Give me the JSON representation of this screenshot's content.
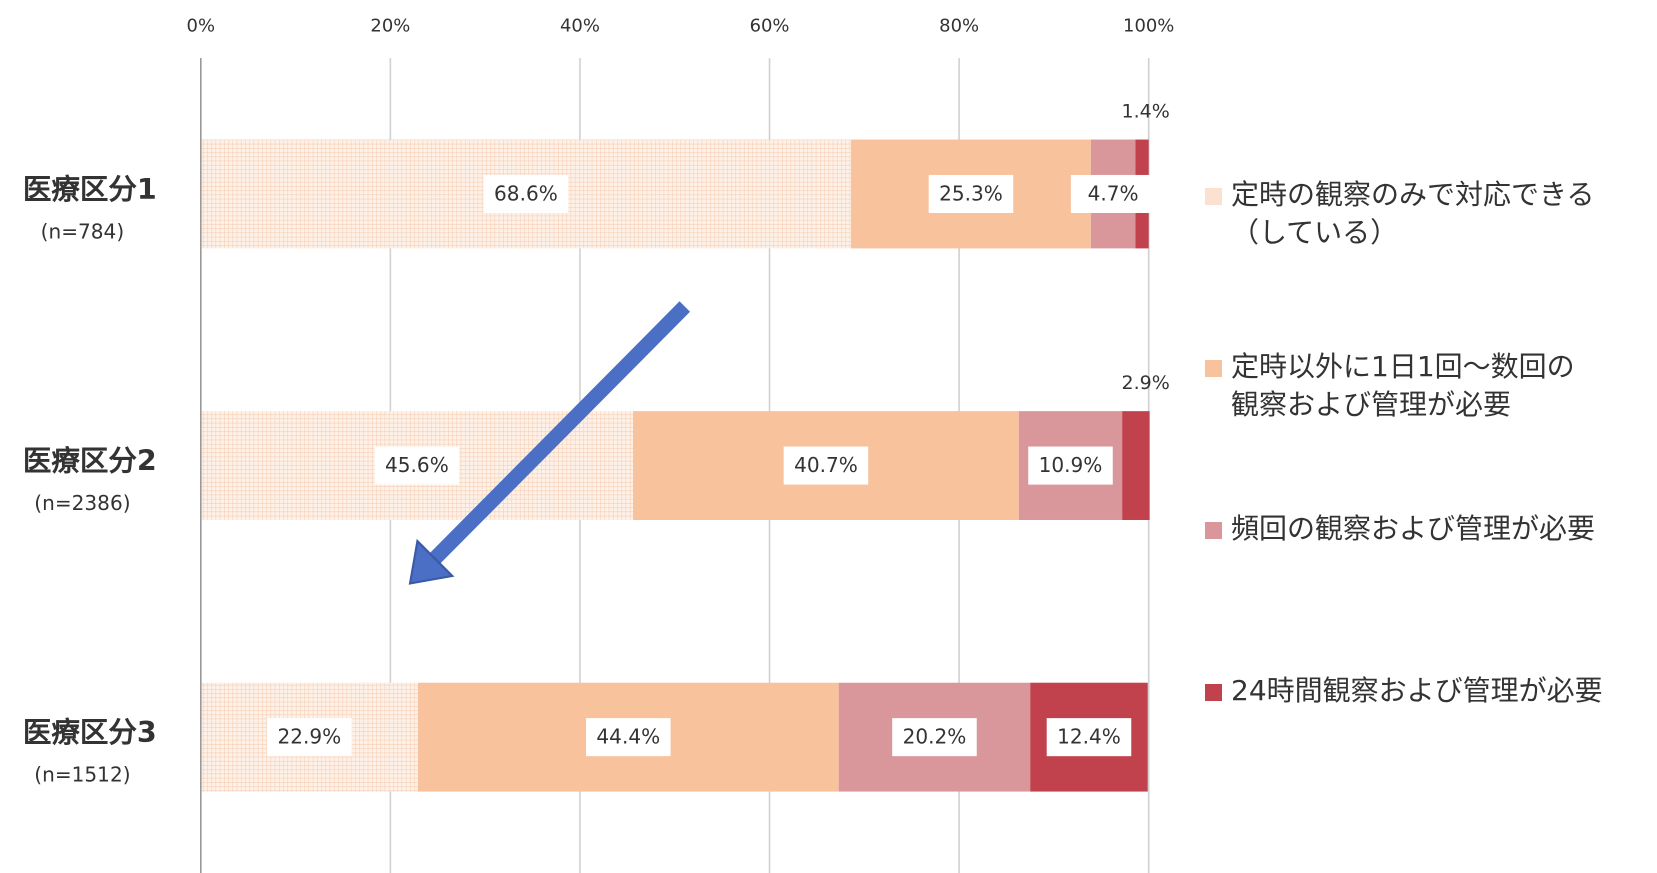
{
  "chart_data": {
    "type": "stacked_hbar",
    "categories": [
      "医療区分1",
      "医療区分2",
      "医療区分3"
    ],
    "sample_sizes": [
      "(n=784)",
      "(n=2386)",
      "(n=1512)"
    ],
    "series": [
      {
        "name": "定時の観察のみで対応できる\n（している）",
        "color": "#fbe2d0",
        "values": [
          68.6,
          45.6,
          22.9
        ],
        "value_labels": [
          "68.6%",
          "45.6%",
          "22.9%"
        ]
      },
      {
        "name": "定時以外に1日1回～数回の\n観察および管理が必要",
        "color": "#f7c29c",
        "values": [
          25.3,
          40.7,
          44.4
        ],
        "value_labels": [
          "25.3%",
          "40.7%",
          "44.4%"
        ]
      },
      {
        "name": "頻回の観察および管理が必要",
        "color": "#d9979c",
        "values": [
          4.7,
          10.9,
          20.2
        ],
        "value_labels": [
          "4.7%",
          "10.9%",
          "20.2%"
        ]
      },
      {
        "name": "24時間観察および管理が必要",
        "color": "#c1424c",
        "values": [
          1.4,
          2.9,
          12.4
        ],
        "value_labels": [
          "1.4%",
          "2.9%",
          "12.4%"
        ]
      }
    ],
    "xlim": [
      0,
      100
    ],
    "xticks": [
      {
        "value": 0,
        "label": "0%"
      },
      {
        "value": 20,
        "label": "20%"
      },
      {
        "value": 40,
        "label": "40%"
      },
      {
        "value": 60,
        "label": "60%"
      },
      {
        "value": 80,
        "label": "80%"
      },
      {
        "value": 100,
        "label": "100%"
      }
    ],
    "grid": true
  }
}
